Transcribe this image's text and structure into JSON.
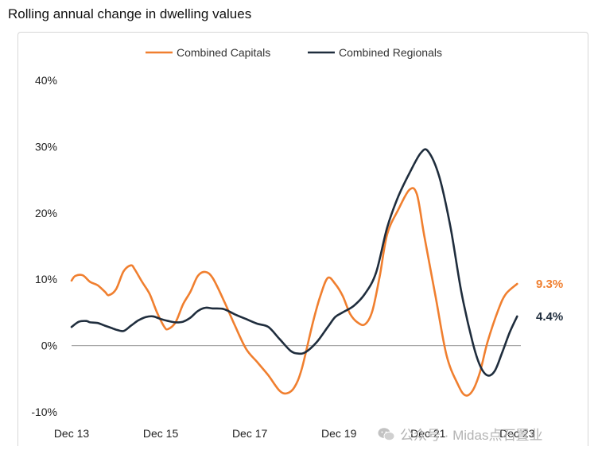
{
  "chart_data": {
    "type": "line",
    "title": "Rolling annual change in dwelling values",
    "xlabel": "",
    "ylabel": "",
    "x_tick_labels": [
      "Dec 13",
      "Dec 15",
      "Dec 17",
      "Dec 19",
      "Dec 21",
      "Dec 23"
    ],
    "y_ticks": [
      "40%",
      "30%",
      "20%",
      "10%",
      "0%",
      "-10%"
    ],
    "y_tick_values": [
      40,
      30,
      20,
      10,
      0,
      -10
    ],
    "ylim": [
      -10,
      40
    ],
    "xlim": [
      "2013-12",
      "2024-01"
    ],
    "grid": false,
    "zero_line": true,
    "legend_position": "top-center",
    "series": [
      {
        "name": "Combined Capitals",
        "color": "#f07f2f",
        "end_label": "9.3%",
        "points": [
          [
            "2013-12",
            9.8
          ],
          [
            "2014-01",
            10.5
          ],
          [
            "2014-03",
            10.6
          ],
          [
            "2014-05",
            9.6
          ],
          [
            "2014-07",
            9.1
          ],
          [
            "2014-09",
            8.1
          ],
          [
            "2014-10",
            7.6
          ],
          [
            "2014-12",
            8.5
          ],
          [
            "2015-02",
            11.2
          ],
          [
            "2015-04",
            12.1
          ],
          [
            "2015-05",
            11.5
          ],
          [
            "2015-07",
            9.6
          ],
          [
            "2015-09",
            7.8
          ],
          [
            "2015-11",
            5.0
          ],
          [
            "2016-01",
            2.8
          ],
          [
            "2016-02",
            2.5
          ],
          [
            "2016-04",
            3.5
          ],
          [
            "2016-06",
            6.2
          ],
          [
            "2016-08",
            8.1
          ],
          [
            "2016-10",
            10.5
          ],
          [
            "2016-12",
            11.1
          ],
          [
            "2017-02",
            10.2
          ],
          [
            "2017-05",
            6.8
          ],
          [
            "2017-08",
            3.0
          ],
          [
            "2017-11",
            -0.5
          ],
          [
            "2018-02",
            -2.5
          ],
          [
            "2018-05",
            -4.5
          ],
          [
            "2018-08",
            -6.8
          ],
          [
            "2018-10",
            -7.2
          ],
          [
            "2018-12",
            -6.3
          ],
          [
            "2019-02",
            -3.5
          ],
          [
            "2019-05",
            3.5
          ],
          [
            "2019-07",
            7.5
          ],
          [
            "2019-09",
            10.2
          ],
          [
            "2019-11",
            9.3
          ],
          [
            "2020-01",
            7.5
          ],
          [
            "2020-03",
            4.8
          ],
          [
            "2020-05",
            3.5
          ],
          [
            "2020-07",
            3.2
          ],
          [
            "2020-09",
            5.2
          ],
          [
            "2020-11",
            10.5
          ],
          [
            "2021-01",
            16.8
          ],
          [
            "2021-04",
            20.5
          ],
          [
            "2021-07",
            23.5
          ],
          [
            "2021-09",
            22.8
          ],
          [
            "2021-11",
            16.5
          ],
          [
            "2022-02",
            7.5
          ],
          [
            "2022-05",
            -1.5
          ],
          [
            "2022-08",
            -5.8
          ],
          [
            "2022-10",
            -7.5
          ],
          [
            "2022-12",
            -6.8
          ],
          [
            "2023-02",
            -4.0
          ],
          [
            "2023-04",
            0.5
          ],
          [
            "2023-07",
            5.5
          ],
          [
            "2023-09",
            7.8
          ],
          [
            "2023-12",
            9.3
          ]
        ]
      },
      {
        "name": "Combined Regionals",
        "color": "#1f2d3d",
        "end_label": "4.4%",
        "points": [
          [
            "2013-12",
            2.8
          ],
          [
            "2014-02",
            3.6
          ],
          [
            "2014-04",
            3.7
          ],
          [
            "2014-05",
            3.5
          ],
          [
            "2014-07",
            3.4
          ],
          [
            "2014-09",
            3.0
          ],
          [
            "2014-11",
            2.6
          ],
          [
            "2014-12",
            2.4
          ],
          [
            "2015-02",
            2.2
          ],
          [
            "2015-04",
            3.0
          ],
          [
            "2015-06",
            3.8
          ],
          [
            "2015-08",
            4.3
          ],
          [
            "2015-10",
            4.4
          ],
          [
            "2015-12",
            4.0
          ],
          [
            "2016-02",
            3.7
          ],
          [
            "2016-04",
            3.5
          ],
          [
            "2016-06",
            3.6
          ],
          [
            "2016-08",
            4.2
          ],
          [
            "2016-10",
            5.2
          ],
          [
            "2016-12",
            5.7
          ],
          [
            "2017-02",
            5.6
          ],
          [
            "2017-05",
            5.5
          ],
          [
            "2017-08",
            4.7
          ],
          [
            "2017-11",
            4.0
          ],
          [
            "2018-02",
            3.3
          ],
          [
            "2018-05",
            2.8
          ],
          [
            "2018-08",
            1.0
          ],
          [
            "2018-11",
            -0.8
          ],
          [
            "2019-01",
            -1.2
          ],
          [
            "2019-03",
            -1.0
          ],
          [
            "2019-06",
            0.5
          ],
          [
            "2019-09",
            2.8
          ],
          [
            "2019-11",
            4.3
          ],
          [
            "2020-01",
            5.0
          ],
          [
            "2020-04",
            6.0
          ],
          [
            "2020-07",
            7.8
          ],
          [
            "2020-10",
            11.0
          ],
          [
            "2021-01",
            17.8
          ],
          [
            "2021-04",
            22.5
          ],
          [
            "2021-07",
            26.0
          ],
          [
            "2021-10",
            29.0
          ],
          [
            "2021-12",
            29.3
          ],
          [
            "2022-03",
            25.5
          ],
          [
            "2022-06",
            18.0
          ],
          [
            "2022-09",
            8.0
          ],
          [
            "2022-12",
            0.5
          ],
          [
            "2023-02",
            -3.0
          ],
          [
            "2023-04",
            -4.5
          ],
          [
            "2023-06",
            -3.8
          ],
          [
            "2023-08",
            -1.0
          ],
          [
            "2023-10",
            2.0
          ],
          [
            "2023-12",
            4.4
          ]
        ]
      }
    ]
  },
  "watermark": {
    "text": "公众号 · Midas点石置业"
  }
}
